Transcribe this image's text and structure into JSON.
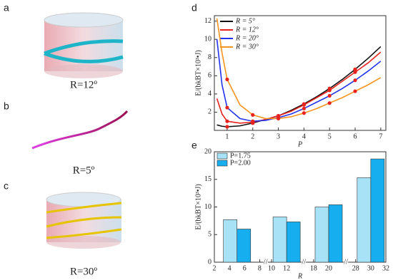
{
  "panels": [
    {
      "label": "a",
      "caption": "R=12º"
    },
    {
      "label": "b",
      "caption": "R=5º"
    },
    {
      "label": "c",
      "caption": "R=30º"
    }
  ],
  "chart_data": [
    {
      "type": "line",
      "label": "d",
      "xlabel": "P",
      "ylabel": "E/(bkBT×10³•J)",
      "x": [
        0.6,
        0.8,
        1,
        1.5,
        2,
        2.5,
        3,
        3.5,
        4,
        4.5,
        5,
        5.5,
        6,
        6.5,
        7
      ],
      "series": [
        {
          "name": "R = 5°",
          "color": "#111111",
          "values": [
            0.6,
            0.45,
            0.4,
            0.5,
            0.8,
            1.2,
            1.6,
            2.2,
            2.9,
            3.7,
            4.6,
            5.6,
            6.7,
            7.9,
            9.2
          ]
        },
        {
          "name": "R = 12°",
          "color": "#e8231f",
          "values": [
            3.5,
            1.8,
            1.0,
            0.8,
            0.9,
            1.2,
            1.6,
            2.1,
            2.8,
            3.6,
            4.4,
            5.4,
            6.4,
            7.4,
            8.6
          ]
        },
        {
          "name": "R = 20°",
          "color": "#2233ee",
          "values": [
            10,
            5,
            2.5,
            1.3,
            1.0,
            1.1,
            1.4,
            1.8,
            2.4,
            3.1,
            3.8,
            4.6,
            5.5,
            6.5,
            7.6
          ]
        },
        {
          "name": "R = 30°",
          "color": "#f7941d",
          "values": [
            12.3,
            8.5,
            5.6,
            2.8,
            1.7,
            1.3,
            1.3,
            1.5,
            1.9,
            2.4,
            3.0,
            3.6,
            4.3,
            5.0,
            5.8
          ]
        }
      ],
      "marker_x": [
        1,
        2,
        3,
        4,
        5,
        6
      ],
      "marker_color": "#e8231f",
      "xlim": [
        0.5,
        7.2
      ],
      "xticks": [
        1,
        2,
        3,
        4,
        5,
        6,
        7
      ],
      "ylim": [
        0,
        12.6
      ],
      "yticks": [
        2,
        4,
        6,
        8,
        10,
        12
      ],
      "legend": "upper left"
    },
    {
      "type": "bar",
      "label": "e",
      "xlabel": "R",
      "ylabel": "E/(bkBT×10³•J)",
      "x": [
        5,
        12,
        20,
        30
      ],
      "series": [
        {
          "name": "P=1.75",
          "color": "#a8e2f7",
          "values": [
            7.7,
            8.2,
            10.0,
            15.3
          ]
        },
        {
          "name": "P=2.00",
          "color": "#16aeee",
          "values": [
            6.0,
            7.3,
            10.4,
            18.7
          ]
        }
      ],
      "segments": [
        {
          "xlim": [
            2,
            8.5
          ],
          "xticks": [
            2,
            4,
            6,
            8
          ]
        },
        {
          "xlim": [
            9.5,
            14
          ],
          "xticks": [
            10,
            12
          ]
        },
        {
          "xlim": [
            17,
            22
          ],
          "xticks": [
            18,
            20
          ]
        },
        {
          "xlim": [
            27,
            32
          ],
          "xticks": [
            28,
            30,
            32
          ]
        }
      ],
      "ylim": [
        0,
        20
      ],
      "yticks": [
        0,
        5,
        10,
        15,
        20
      ],
      "legend": "upper left"
    }
  ]
}
